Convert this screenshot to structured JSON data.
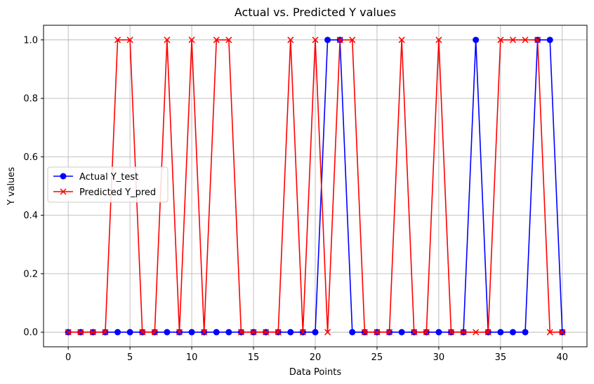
{
  "chart_data": {
    "type": "line",
    "title": "Actual vs. Predicted Y values",
    "xlabel": "Data Points",
    "ylabel": "Y values",
    "xlim": [
      -2,
      42
    ],
    "ylim": [
      -0.05,
      1.05
    ],
    "xticks": [
      0,
      5,
      10,
      15,
      20,
      25,
      30,
      35,
      40
    ],
    "yticks": [
      0.0,
      0.2,
      0.4,
      0.6,
      0.8,
      1.0
    ],
    "xtick_labels": [
      "0",
      "5",
      "10",
      "15",
      "20",
      "25",
      "30",
      "35",
      "40"
    ],
    "ytick_labels": [
      "0.0",
      "0.2",
      "0.4",
      "0.6",
      "0.8",
      "1.0"
    ],
    "grid": true,
    "legend_position": "center-left",
    "x": [
      0,
      1,
      2,
      3,
      4,
      5,
      6,
      7,
      8,
      9,
      10,
      11,
      12,
      13,
      14,
      15,
      16,
      17,
      18,
      19,
      20,
      21,
      22,
      23,
      24,
      25,
      26,
      27,
      28,
      29,
      30,
      31,
      32,
      33,
      34,
      35,
      36,
      37,
      38,
      39,
      40
    ],
    "series": [
      {
        "name": "Actual Y_test",
        "color": "#0000ff",
        "marker": "circle",
        "values": [
          0,
          0,
          0,
          0,
          0,
          0,
          0,
          0,
          0,
          0,
          0,
          0,
          0,
          0,
          0,
          0,
          0,
          0,
          0,
          0,
          0,
          1,
          1,
          0,
          0,
          0,
          0,
          0,
          0,
          0,
          0,
          0,
          0,
          1,
          0,
          0,
          0,
          0,
          1,
          1,
          0
        ]
      },
      {
        "name": "Predicted Y_pred",
        "color": "#ff0000",
        "marker": "x",
        "values": [
          0,
          0,
          0,
          0,
          1,
          1,
          0,
          0,
          1,
          0,
          1,
          0,
          1,
          1,
          0,
          0,
          0,
          0,
          1,
          0,
          1,
          0,
          1,
          1,
          0,
          0,
          0,
          1,
          0,
          0,
          1,
          0,
          0,
          0,
          0,
          1,
          1,
          1,
          1,
          0,
          0
        ]
      }
    ]
  }
}
